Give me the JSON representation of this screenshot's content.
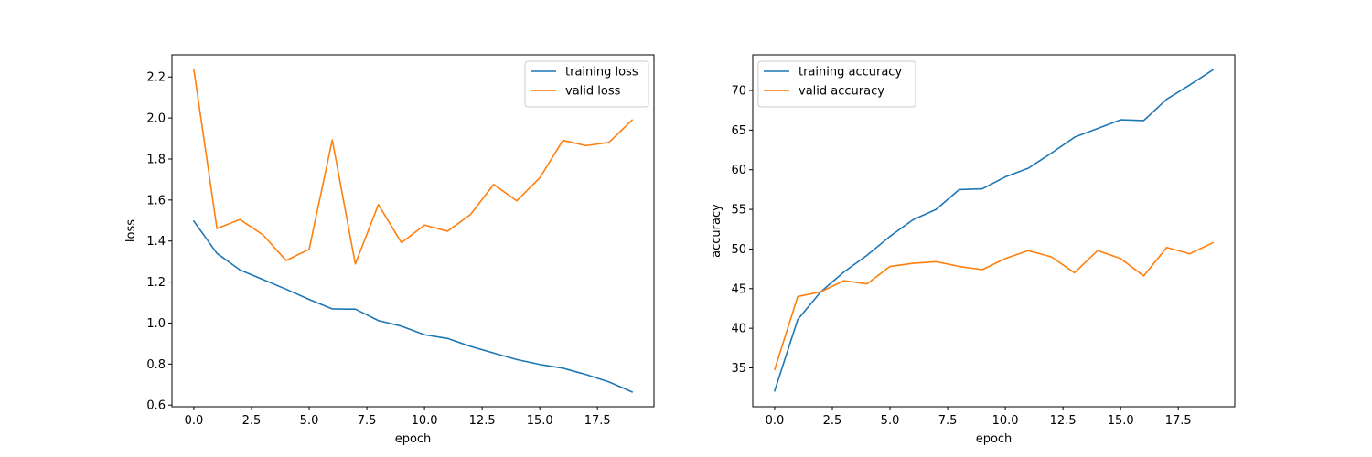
{
  "chart_data": [
    {
      "type": "line",
      "title": "",
      "xlabel": "epoch",
      "ylabel": "loss",
      "xlim": [
        -0.95,
        19.95
      ],
      "ylim": [
        0.592,
        2.308
      ],
      "xticks": [
        0,
        2.5,
        5,
        7.5,
        10,
        12.5,
        15,
        17.5
      ],
      "xtick_labels": [
        "0.0",
        "2.5",
        "5.0",
        "7.5",
        "10.0",
        "12.5",
        "15.0",
        "17.5"
      ],
      "yticks": [
        0.6,
        0.8,
        1.0,
        1.2,
        1.4,
        1.6,
        1.8,
        2.0,
        2.2
      ],
      "ytick_labels": [
        "0.6",
        "0.8",
        "1.0",
        "1.2",
        "1.4",
        "1.6",
        "1.8",
        "2.0",
        "2.2"
      ],
      "grid": false,
      "legend_position": "top-right",
      "x": [
        0,
        1,
        2,
        3,
        4,
        5,
        6,
        7,
        8,
        9,
        10,
        11,
        12,
        13,
        14,
        15,
        16,
        17,
        18,
        19
      ],
      "series": [
        {
          "name": "training loss",
          "color": "#1f77b4",
          "values": [
            1.497,
            1.34,
            1.259,
            1.212,
            1.165,
            1.115,
            1.069,
            1.068,
            1.012,
            0.985,
            0.943,
            0.925,
            0.886,
            0.854,
            0.822,
            0.798,
            0.78,
            0.749,
            0.713,
            0.664
          ]
        },
        {
          "name": "valid loss",
          "color": "#ff7f0e",
          "values": [
            2.236,
            1.461,
            1.505,
            1.43,
            1.305,
            1.36,
            1.893,
            1.288,
            1.578,
            1.392,
            1.478,
            1.448,
            1.53,
            1.676,
            1.596,
            1.708,
            1.891,
            1.865,
            1.881,
            1.99
          ]
        }
      ]
    },
    {
      "type": "line",
      "title": "",
      "xlabel": "epoch",
      "ylabel": "accuracy",
      "xlim": [
        -0.95,
        19.95
      ],
      "ylim": [
        30.1,
        74.5
      ],
      "xticks": [
        0,
        2.5,
        5,
        7.5,
        10,
        12.5,
        15,
        17.5
      ],
      "xtick_labels": [
        "0.0",
        "2.5",
        "5.0",
        "7.5",
        "10.0",
        "12.5",
        "15.0",
        "17.5"
      ],
      "yticks": [
        35,
        40,
        45,
        50,
        55,
        60,
        65,
        70
      ],
      "ytick_labels": [
        "35",
        "40",
        "45",
        "50",
        "55",
        "60",
        "65",
        "70"
      ],
      "grid": false,
      "legend_position": "top-left",
      "x": [
        0,
        1,
        2,
        3,
        4,
        5,
        6,
        7,
        8,
        9,
        10,
        11,
        12,
        13,
        14,
        15,
        16,
        17,
        18,
        19
      ],
      "series": [
        {
          "name": "training accuracy",
          "color": "#1f77b4",
          "values": [
            32.1,
            41.1,
            44.6,
            47.1,
            49.2,
            51.6,
            53.7,
            55.0,
            57.5,
            57.6,
            59.1,
            60.2,
            62.1,
            64.1,
            65.2,
            66.3,
            66.2,
            68.9,
            70.7,
            72.6
          ]
        },
        {
          "name": "valid accuracy",
          "color": "#ff7f0e",
          "values": [
            34.8,
            44.0,
            44.6,
            46.0,
            45.6,
            47.8,
            48.2,
            48.4,
            47.8,
            47.4,
            48.8,
            49.8,
            49.0,
            47.0,
            49.8,
            48.8,
            46.6,
            50.2,
            49.4,
            50.8
          ]
        }
      ]
    }
  ]
}
